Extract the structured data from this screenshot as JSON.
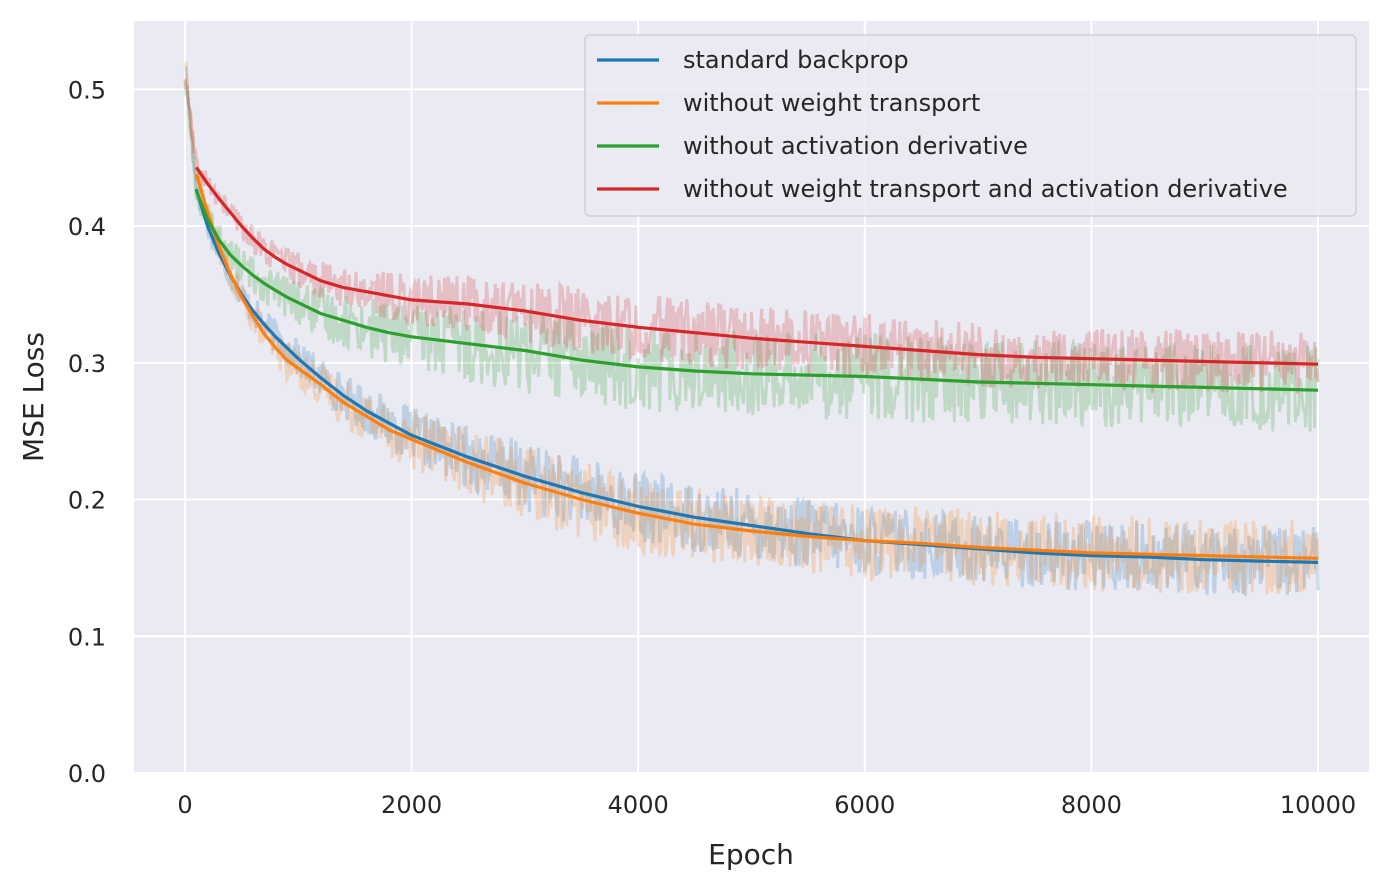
{
  "chart_data": {
    "type": "line",
    "xlabel": "Epoch",
    "ylabel": "MSE Loss",
    "xlim": [
      -450,
      10450
    ],
    "ylim": [
      0.0,
      0.55
    ],
    "xticks": [
      0,
      2000,
      4000,
      6000,
      8000,
      10000
    ],
    "xtick_labels": [
      "0",
      "2000",
      "4000",
      "6000",
      "8000",
      "10000"
    ],
    "yticks": [
      0.0,
      0.1,
      0.2,
      0.3,
      0.4,
      0.5
    ],
    "ytick_labels": [
      "0.0",
      "0.1",
      "0.2",
      "0.3",
      "0.4",
      "0.5"
    ],
    "grid": true,
    "legend_position": "top-right",
    "colors": {
      "background": "#eaeaf2",
      "grid": "#ffffff",
      "text": "#262626"
    },
    "series": [
      {
        "name": "standard backprop",
        "color": "#1f77b4",
        "x": [
          0,
          100,
          200,
          300,
          400,
          500,
          600,
          700,
          800,
          900,
          1000,
          1200,
          1400,
          1600,
          1800,
          2000,
          2500,
          3000,
          3500,
          4000,
          4500,
          5000,
          5500,
          6000,
          6500,
          7000,
          7500,
          8000,
          8500,
          9000,
          9500,
          10000
        ],
        "y": [
          0.52,
          0.427,
          0.4,
          0.38,
          0.364,
          0.35,
          0.338,
          0.328,
          0.319,
          0.311,
          0.303,
          0.289,
          0.276,
          0.265,
          0.256,
          0.247,
          0.231,
          0.217,
          0.205,
          0.195,
          0.187,
          0.181,
          0.175,
          0.17,
          0.167,
          0.164,
          0.161,
          0.159,
          0.158,
          0.156,
          0.155,
          0.154
        ],
        "noise": 0.013
      },
      {
        "name": "without weight transport",
        "color": "#ff7f0e",
        "x": [
          0,
          100,
          200,
          300,
          400,
          500,
          600,
          700,
          800,
          900,
          1000,
          1200,
          1400,
          1600,
          1800,
          2000,
          2500,
          3000,
          3500,
          4000,
          4500,
          5000,
          5500,
          6000,
          6500,
          7000,
          7500,
          8000,
          8500,
          9000,
          9500,
          10000
        ],
        "y": [
          0.52,
          0.438,
          0.41,
          0.385,
          0.365,
          0.348,
          0.334,
          0.321,
          0.311,
          0.302,
          0.296,
          0.284,
          0.271,
          0.261,
          0.251,
          0.244,
          0.227,
          0.212,
          0.2,
          0.19,
          0.182,
          0.177,
          0.173,
          0.17,
          0.168,
          0.165,
          0.163,
          0.161,
          0.16,
          0.159,
          0.158,
          0.157
        ],
        "noise": 0.014
      },
      {
        "name": "without activation derivative",
        "color": "#2ca02c",
        "x": [
          0,
          100,
          200,
          300,
          400,
          500,
          600,
          700,
          800,
          900,
          1000,
          1200,
          1400,
          1600,
          1800,
          2000,
          2500,
          3000,
          3500,
          4000,
          4500,
          5000,
          5500,
          6000,
          6500,
          7000,
          7500,
          8000,
          8500,
          9000,
          9500,
          10000
        ],
        "y": [
          0.51,
          0.426,
          0.405,
          0.39,
          0.379,
          0.371,
          0.364,
          0.358,
          0.353,
          0.348,
          0.344,
          0.336,
          0.331,
          0.326,
          0.322,
          0.319,
          0.314,
          0.309,
          0.302,
          0.297,
          0.294,
          0.292,
          0.291,
          0.29,
          0.288,
          0.286,
          0.285,
          0.284,
          0.283,
          0.282,
          0.281,
          0.28
        ],
        "noise": 0.016
      },
      {
        "name": "without weight transport and activation derivative",
        "color": "#d62728",
        "x": [
          0,
          100,
          200,
          300,
          400,
          500,
          600,
          700,
          800,
          900,
          1000,
          1200,
          1400,
          1600,
          1800,
          2000,
          2500,
          3000,
          3500,
          4000,
          4500,
          5000,
          5500,
          6000,
          6500,
          7000,
          7500,
          8000,
          8500,
          9000,
          9500,
          10000
        ],
        "y": [
          0.51,
          0.443,
          0.431,
          0.42,
          0.41,
          0.4,
          0.391,
          0.383,
          0.377,
          0.372,
          0.368,
          0.36,
          0.355,
          0.352,
          0.349,
          0.346,
          0.343,
          0.338,
          0.331,
          0.326,
          0.322,
          0.318,
          0.315,
          0.312,
          0.309,
          0.306,
          0.304,
          0.303,
          0.302,
          0.301,
          0.3,
          0.299
        ],
        "noise": 0.012
      }
    ]
  }
}
